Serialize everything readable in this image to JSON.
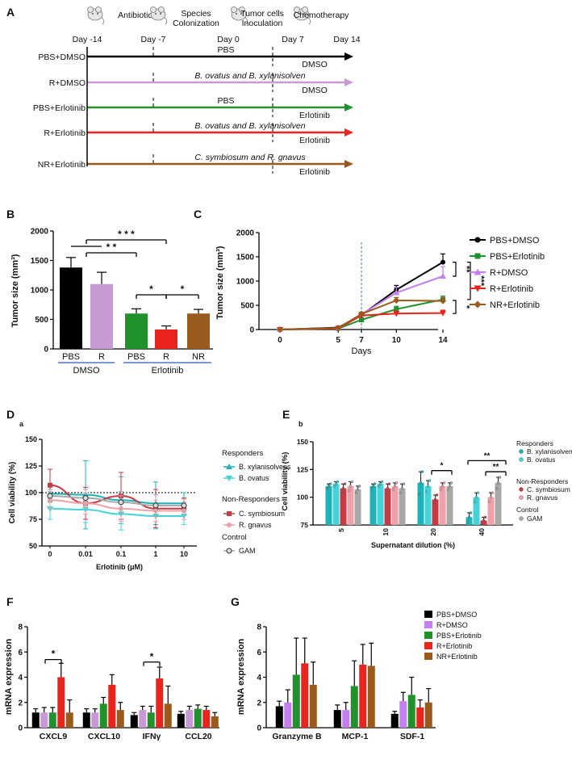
{
  "panel_labels": {
    "A": "A",
    "B": "B",
    "C": "C",
    "D": "D",
    "E": "E",
    "F": "F",
    "G": "G",
    "Da": "a",
    "Eb": "b"
  },
  "colors": {
    "black": "#000000",
    "purple": "#c79ad6",
    "green": "#21922b",
    "red": "#e8241c",
    "brown": "#9a5a1e",
    "teal": "#1fb3b8",
    "cyan": "#43d3d8",
    "darkred": "#c63a45",
    "pink": "#f0a0a8",
    "grey": "#a8a8a8",
    "violet": "#c57ff0",
    "blue": "#4d79c7"
  },
  "panelA": {
    "timeline": [
      {
        "day": "Day -14",
        "event": "Antibiotics",
        "icon": "mouse-icon"
      },
      {
        "day": "Day -7",
        "event": "Species\nColonization",
        "icon": "mouse-icon"
      },
      {
        "day": "Day 0",
        "event": "Tumor cells\nInoculation",
        "icon": "mouse-icon"
      },
      {
        "day": "Day 7",
        "event": "Chemotherapy",
        "icon": "mouse-icon"
      },
      {
        "day": "Day 14",
        "event": "",
        "icon": ""
      }
    ],
    "groups": [
      {
        "name": "PBS+DMSO",
        "treatment": "PBS",
        "drug": "DMSO",
        "color": "#000000"
      },
      {
        "name": "R+DMSO",
        "treatment": "B. ovatus and B. xylanisolven",
        "drug": "DMSO",
        "color": "#c79ad6"
      },
      {
        "name": "PBS+Erlotinib",
        "treatment": "PBS",
        "drug": "Erlotinib",
        "color": "#21922b"
      },
      {
        "name": "R+Erlotinib",
        "treatment": "B. ovatus and B. xylanisolven",
        "drug": "Erlotinib",
        "color": "#e8241c"
      },
      {
        "name": "NR+Erlotinib",
        "treatment": "C. symbiosum and R. gnavus",
        "drug": "Erlotinib",
        "color": "#9a5a1e"
      }
    ]
  },
  "chart_data": [
    {
      "id": "B",
      "type": "bar",
      "ylabel": "Tumor size (mm³)",
      "ylim": [
        0,
        2000
      ],
      "yticks": [
        0,
        500,
        1000,
        1500,
        2000
      ],
      "categories": [
        "PBS",
        "R",
        "PBS",
        "R",
        "NR"
      ],
      "values": [
        1380,
        1100,
        600,
        330,
        600
      ],
      "errors": [
        170,
        200,
        80,
        60,
        70
      ],
      "colors": [
        "#000000",
        "#c79ad6",
        "#21922b",
        "#e8241c",
        "#9a5a1e"
      ],
      "groups": [
        {
          "label": "DMSO",
          "from": 0,
          "to": 1
        },
        {
          "label": "Erlotinib",
          "from": 2,
          "to": 4
        }
      ],
      "significance": [
        {
          "label": "* * *",
          "from": 0.5,
          "to": 3
        },
        {
          "label": "* *",
          "from": 0.5,
          "to": 2
        },
        {
          "label": "*",
          "from": 2,
          "to": 3
        },
        {
          "label": "*",
          "from": 3,
          "to": 4
        }
      ]
    },
    {
      "id": "C",
      "type": "line",
      "xlabel": "Days",
      "ylabel": "Tumor size (mm³)",
      "ylim": [
        0,
        2000
      ],
      "x": [
        0,
        5,
        7,
        10,
        14
      ],
      "xticks": [
        0,
        5,
        7,
        10,
        14
      ],
      "yticks": [
        0,
        500,
        1000,
        1500,
        2000
      ],
      "series": [
        {
          "name": "PBS+DMSO",
          "color": "#000000",
          "marker": "circle",
          "values": [
            0,
            40,
            300,
            820,
            1390
          ],
          "errors": [
            0,
            10,
            40,
            90,
            170
          ]
        },
        {
          "name": "PBS+Erlotinib",
          "color": "#21922b",
          "marker": "square",
          "values": [
            0,
            20,
            200,
            420,
            620
          ],
          "errors": [
            0,
            10,
            30,
            60,
            70
          ]
        },
        {
          "name": "R+DMSO",
          "color": "#c57ff0",
          "marker": "triangle",
          "values": [
            0,
            30,
            310,
            760,
            1100
          ],
          "errors": [
            0,
            10,
            40,
            110,
            200
          ]
        },
        {
          "name": "R+Erlotinib",
          "color": "#e8241c",
          "marker": "triangle-down",
          "values": [
            0,
            20,
            290,
            330,
            340
          ],
          "errors": [
            0,
            10,
            40,
            50,
            60
          ]
        },
        {
          "name": "NR+Erlotinib",
          "color": "#9a5a1e",
          "marker": "diamond",
          "values": [
            0,
            30,
            320,
            600,
            590
          ],
          "errors": [
            0,
            10,
            40,
            60,
            70
          ]
        }
      ],
      "annotations": [
        "**",
        "***",
        "*"
      ]
    },
    {
      "id": "D",
      "type": "line",
      "xlabel": "Erlotinib (μM)",
      "ylabel": "Cell viability (%)",
      "ylim": [
        50,
        150
      ],
      "x": [
        "0",
        "0.01",
        "0.1",
        "1",
        "10"
      ],
      "yticks": [
        50,
        75,
        100,
        125,
        150
      ],
      "reference_line": 100,
      "legend_headers": [
        "Responders",
        "Non-Responders",
        "Control"
      ],
      "series": [
        {
          "name": "B. xylanisolvens",
          "group": "Responders",
          "color": "#1fb3b8",
          "marker": "triangle",
          "values": [
            99,
            98,
            93,
            90,
            90
          ],
          "errors": [
            8,
            32,
            22,
            20,
            10
          ]
        },
        {
          "name": "B. ovatus",
          "group": "Responders",
          "color": "#43d3d8",
          "marker": "triangle-down",
          "values": [
            85,
            84,
            80,
            78,
            78
          ],
          "errors": [
            10,
            12,
            15,
            12,
            8
          ]
        },
        {
          "name": "C. symbiosum",
          "group": "Non-Responders",
          "color": "#c63a45",
          "marker": "square",
          "values": [
            107,
            90,
            97,
            85,
            85
          ],
          "errors": [
            15,
            15,
            22,
            18,
            10
          ]
        },
        {
          "name": "R. gnavus",
          "group": "Non-Responders",
          "color": "#f0a0a8",
          "marker": "circle",
          "values": [
            93,
            90,
            85,
            83,
            83
          ],
          "errors": [
            8,
            10,
            12,
            10,
            8
          ]
        },
        {
          "name": "GAM",
          "group": "Control",
          "color": "#a8a8a8",
          "marker": "circle-open",
          "values": [
            97,
            95,
            91,
            88,
            88
          ],
          "errors": [
            6,
            8,
            10,
            10,
            6
          ]
        }
      ]
    },
    {
      "id": "E",
      "type": "bar",
      "xlabel": "Supernatant dilution (%)",
      "ylabel": "Cell viability (%)",
      "ylim": [
        75,
        150
      ],
      "categories": [
        "5",
        "10",
        "20",
        "40"
      ],
      "yticks": [
        75,
        100,
        125,
        150
      ],
      "legend_headers": [
        "Responders",
        "Non-Responders",
        "Control"
      ],
      "series": [
        {
          "name": "B. xylanisolvens",
          "group": "Responders",
          "color": "#1fb3b8",
          "values": [
            110,
            110,
            113,
            82
          ],
          "errors": [
            2,
            2,
            10,
            4
          ]
        },
        {
          "name": "B. ovatus",
          "group": "Responders",
          "color": "#43d3d8",
          "values": [
            112,
            112,
            110,
            100
          ],
          "errors": [
            2,
            2,
            5,
            4
          ]
        },
        {
          "name": "C. symbiosum",
          "group": "Non-Responders",
          "color": "#c63a45",
          "values": [
            108,
            108,
            98,
            79
          ],
          "errors": [
            4,
            4,
            4,
            3
          ]
        },
        {
          "name": "R. gnavus",
          "group": "Non-Responders",
          "color": "#f0a0a8",
          "values": [
            110,
            110,
            110,
            100
          ],
          "errors": [
            4,
            3,
            3,
            4
          ]
        },
        {
          "name": "GAM",
          "group": "Control",
          "color": "#a8a8a8",
          "values": [
            107,
            108,
            110,
            113
          ],
          "errors": [
            3,
            4,
            3,
            5
          ]
        }
      ],
      "significance": [
        {
          "label": "*",
          "category": "20"
        },
        {
          "label": "**",
          "category": "40"
        },
        {
          "label": "**",
          "category": "40"
        }
      ]
    },
    {
      "id": "F",
      "type": "bar",
      "ylabel": "mRNA expression",
      "ylim": [
        0,
        8
      ],
      "categories": [
        "CXCL9",
        "CXCL10",
        "IFNγ",
        "CCL20"
      ],
      "yticks": [
        0,
        2,
        4,
        6,
        8
      ],
      "series": [
        {
          "name": "PBS+DMSO",
          "color": "#000000",
          "values": [
            1.2,
            1.2,
            1.0,
            1.1
          ],
          "errors": [
            0.3,
            0.3,
            0.2,
            0.2
          ]
        },
        {
          "name": "R+DMSO",
          "color": "#c79ad6",
          "values": [
            1.2,
            1.2,
            1.4,
            1.4
          ],
          "errors": [
            0.4,
            0.3,
            0.3,
            0.3
          ]
        },
        {
          "name": "PBS+Erlotinib",
          "color": "#21922b",
          "values": [
            1.2,
            1.9,
            1.2,
            1.5
          ],
          "errors": [
            0.4,
            0.5,
            0.5,
            0.3
          ]
        },
        {
          "name": "R+Erlotinib",
          "color": "#e8241c",
          "values": [
            4.0,
            3.4,
            3.9,
            1.4
          ],
          "errors": [
            1.1,
            0.8,
            0.9,
            0.3
          ]
        },
        {
          "name": "NR+Erlotinib",
          "color": "#9a5a1e",
          "values": [
            1.2,
            1.4,
            1.9,
            0.9
          ],
          "errors": [
            1.0,
            0.6,
            1.4,
            0.3
          ]
        }
      ],
      "significance": [
        {
          "label": "*",
          "category": "CXCL9"
        },
        {
          "label": "*",
          "category": "IFNγ"
        }
      ]
    },
    {
      "id": "G",
      "type": "bar",
      "ylabel": "mRNA expression",
      "ylim": [
        0,
        8
      ],
      "categories": [
        "Granzyme B",
        "MCP-1",
        "SDF-1"
      ],
      "yticks": [
        0,
        2,
        4,
        6,
        8
      ],
      "series": [
        {
          "name": "PBS+DMSO",
          "color": "#000000",
          "values": [
            1.7,
            1.4,
            1.1
          ],
          "errors": [
            0.4,
            0.4,
            0.2
          ]
        },
        {
          "name": "R+DMSO",
          "color": "#c57ff0",
          "values": [
            2.0,
            1.4,
            2.1
          ],
          "errors": [
            1.0,
            0.6,
            0.7
          ]
        },
        {
          "name": "PBS+Erlotinib",
          "color": "#21922b",
          "values": [
            4.2,
            3.3,
            2.6
          ],
          "errors": [
            2.9,
            2.0,
            1.4
          ]
        },
        {
          "name": "R+Erlotinib",
          "color": "#e8241c",
          "values": [
            5.1,
            5.0,
            1.6
          ],
          "errors": [
            2.0,
            1.6,
            0.6
          ]
        },
        {
          "name": "NR+Erlotinib",
          "color": "#9a5a1e",
          "values": [
            3.4,
            4.9,
            2.0
          ],
          "errors": [
            1.8,
            1.8,
            1.1
          ]
        }
      ]
    }
  ]
}
